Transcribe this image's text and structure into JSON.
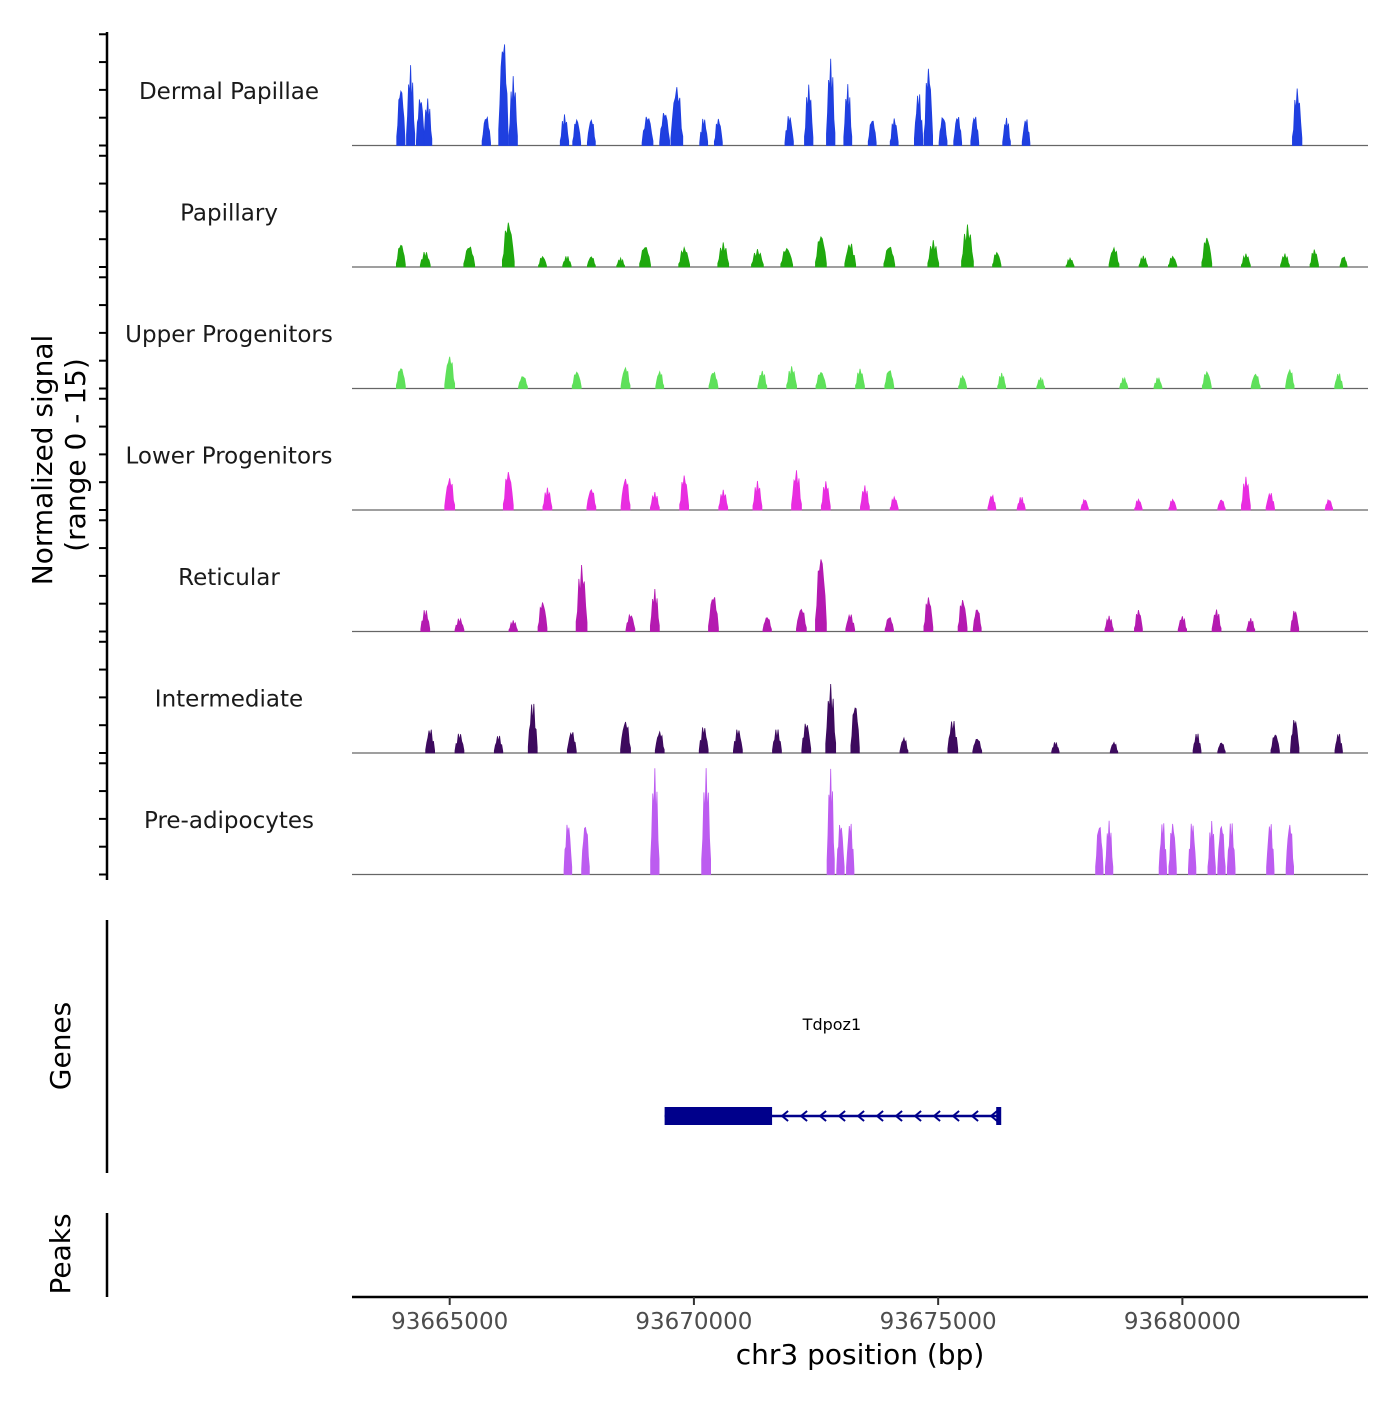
{
  "chart_data": {
    "type": "area",
    "title": "",
    "region": {
      "chrom": "chr3",
      "start": 93663000,
      "end": 93683800
    },
    "xlabel": "chr3 position (bp)",
    "ylabel": "Normalized signal",
    "ylabel_sub": "(range 0 - 15)",
    "ylim": [
      0,
      15
    ],
    "x_ticks": [
      93665000,
      93670000,
      93675000,
      93680000
    ],
    "x_tick_labels": [
      "93665000",
      "93670000",
      "93675000",
      "93680000"
    ],
    "tracks": [
      {
        "name": "Dermal Papillae",
        "color": "#1f3fe0",
        "peaks": [
          [
            93664000,
            0.045,
            0.55
          ],
          [
            93664200,
            0.045,
            0.72
          ],
          [
            93664400,
            0.04,
            0.45
          ],
          [
            93664550,
            0.045,
            0.42
          ],
          [
            93665750,
            0.05,
            0.28
          ],
          [
            93666100,
            0.07,
            1.0
          ],
          [
            93666300,
            0.05,
            0.62
          ],
          [
            93667350,
            0.05,
            0.28
          ],
          [
            93667600,
            0.04,
            0.25
          ],
          [
            93667900,
            0.04,
            0.25
          ],
          [
            93669050,
            0.1,
            0.28
          ],
          [
            93669650,
            0.12,
            0.55
          ],
          [
            93669400,
            0.08,
            0.32
          ],
          [
            93670200,
            0.04,
            0.25
          ],
          [
            93670500,
            0.04,
            0.25
          ],
          [
            93671950,
            0.05,
            0.28
          ],
          [
            93672350,
            0.05,
            0.55
          ],
          [
            93672800,
            0.05,
            0.78
          ],
          [
            93673150,
            0.04,
            0.55
          ],
          [
            93673650,
            0.04,
            0.25
          ],
          [
            93674100,
            0.04,
            0.25
          ],
          [
            93674600,
            0.05,
            0.48
          ],
          [
            93674800,
            0.05,
            0.72
          ],
          [
            93675100,
            0.04,
            0.28
          ],
          [
            93675400,
            0.04,
            0.28
          ],
          [
            93675750,
            0.04,
            0.28
          ],
          [
            93676400,
            0.035,
            0.25
          ],
          [
            93676800,
            0.035,
            0.25
          ],
          [
            93682350,
            0.07,
            0.52
          ]
        ]
      },
      {
        "name": "Papillary",
        "color": "#1fa80e",
        "peaks": [
          [
            93664000,
            0.06,
            0.22
          ],
          [
            93664500,
            0.08,
            0.14
          ],
          [
            93665400,
            0.1,
            0.2
          ],
          [
            93666200,
            0.12,
            0.42
          ],
          [
            93666900,
            0.04,
            0.1
          ],
          [
            93667400,
            0.05,
            0.1
          ],
          [
            93667900,
            0.04,
            0.1
          ],
          [
            93668500,
            0.04,
            0.08
          ],
          [
            93669000,
            0.1,
            0.2
          ],
          [
            93669800,
            0.1,
            0.18
          ],
          [
            93670600,
            0.1,
            0.22
          ],
          [
            93671300,
            0.12,
            0.16
          ],
          [
            93671900,
            0.12,
            0.18
          ],
          [
            93672600,
            0.1,
            0.3
          ],
          [
            93673200,
            0.1,
            0.22
          ],
          [
            93674000,
            0.1,
            0.2
          ],
          [
            93674900,
            0.1,
            0.24
          ],
          [
            93675600,
            0.12,
            0.38
          ],
          [
            93676200,
            0.05,
            0.14
          ],
          [
            93677700,
            0.04,
            0.08
          ],
          [
            93678600,
            0.08,
            0.18
          ],
          [
            93679200,
            0.05,
            0.1
          ],
          [
            93679800,
            0.05,
            0.1
          ],
          [
            93680500,
            0.08,
            0.28
          ],
          [
            93681300,
            0.06,
            0.12
          ],
          [
            93682100,
            0.06,
            0.12
          ],
          [
            93682700,
            0.05,
            0.16
          ],
          [
            93683300,
            0.02,
            0.1
          ]
        ]
      },
      {
        "name": "Upper Progenitors",
        "color": "#5ee05a",
        "peaks": [
          [
            93664000,
            0.06,
            0.2
          ],
          [
            93665000,
            0.08,
            0.3
          ],
          [
            93666500,
            0.06,
            0.12
          ],
          [
            93667600,
            0.06,
            0.16
          ],
          [
            93668600,
            0.06,
            0.2
          ],
          [
            93669300,
            0.04,
            0.16
          ],
          [
            93670400,
            0.06,
            0.16
          ],
          [
            93671400,
            0.06,
            0.16
          ],
          [
            93672000,
            0.08,
            0.2
          ],
          [
            93672600,
            0.08,
            0.16
          ],
          [
            93673400,
            0.06,
            0.18
          ],
          [
            93674000,
            0.06,
            0.18
          ],
          [
            93675500,
            0.04,
            0.12
          ],
          [
            93676300,
            0.04,
            0.14
          ],
          [
            93677100,
            0.04,
            0.1
          ],
          [
            93678800,
            0.04,
            0.1
          ],
          [
            93679500,
            0.04,
            0.1
          ],
          [
            93680500,
            0.06,
            0.16
          ],
          [
            93681500,
            0.06,
            0.14
          ],
          [
            93682200,
            0.05,
            0.18
          ],
          [
            93683200,
            0.04,
            0.14
          ]
        ]
      },
      {
        "name": "Lower Progenitors",
        "color": "#e82de0",
        "peaks": [
          [
            93665000,
            0.08,
            0.3
          ],
          [
            93666200,
            0.08,
            0.36
          ],
          [
            93667000,
            0.06,
            0.2
          ],
          [
            93667900,
            0.06,
            0.2
          ],
          [
            93668600,
            0.06,
            0.3
          ],
          [
            93669200,
            0.06,
            0.16
          ],
          [
            93669800,
            0.06,
            0.32
          ],
          [
            93670600,
            0.06,
            0.18
          ],
          [
            93671300,
            0.06,
            0.26
          ],
          [
            93672100,
            0.08,
            0.36
          ],
          [
            93672700,
            0.06,
            0.26
          ],
          [
            93673500,
            0.06,
            0.22
          ],
          [
            93674100,
            0.04,
            0.12
          ],
          [
            93676100,
            0.04,
            0.14
          ],
          [
            93676700,
            0.04,
            0.12
          ],
          [
            93678000,
            0.03,
            0.1
          ],
          [
            93679100,
            0.03,
            0.1
          ],
          [
            93679800,
            0.03,
            0.1
          ],
          [
            93680800,
            0.03,
            0.1
          ],
          [
            93681300,
            0.06,
            0.3
          ],
          [
            93681800,
            0.05,
            0.16
          ],
          [
            93683000,
            0.03,
            0.1
          ]
        ]
      },
      {
        "name": "Reticular",
        "color": "#b41ab0",
        "peaks": [
          [
            93664500,
            0.06,
            0.2
          ],
          [
            93665200,
            0.06,
            0.12
          ],
          [
            93666300,
            0.05,
            0.1
          ],
          [
            93666900,
            0.06,
            0.28
          ],
          [
            93667700,
            0.1,
            0.6
          ],
          [
            93668700,
            0.06,
            0.16
          ],
          [
            93669200,
            0.06,
            0.38
          ],
          [
            93670400,
            0.08,
            0.34
          ],
          [
            93671500,
            0.05,
            0.14
          ],
          [
            93672200,
            0.08,
            0.22
          ],
          [
            93672600,
            0.1,
            0.72
          ],
          [
            93673200,
            0.06,
            0.16
          ],
          [
            93674000,
            0.05,
            0.14
          ],
          [
            93674800,
            0.06,
            0.32
          ],
          [
            93675500,
            0.06,
            0.3
          ],
          [
            93675800,
            0.04,
            0.22
          ],
          [
            93678500,
            0.05,
            0.14
          ],
          [
            93679100,
            0.04,
            0.2
          ],
          [
            93680000,
            0.05,
            0.14
          ],
          [
            93680700,
            0.06,
            0.2
          ],
          [
            93681400,
            0.04,
            0.12
          ],
          [
            93682300,
            0.04,
            0.2
          ]
        ]
      },
      {
        "name": "Intermediate",
        "color": "#3d0a5e",
        "peaks": [
          [
            93664600,
            0.06,
            0.22
          ],
          [
            93665200,
            0.06,
            0.18
          ],
          [
            93666000,
            0.05,
            0.16
          ],
          [
            93666700,
            0.06,
            0.46
          ],
          [
            93667500,
            0.06,
            0.2
          ],
          [
            93668600,
            0.08,
            0.3
          ],
          [
            93669300,
            0.06,
            0.2
          ],
          [
            93670200,
            0.06,
            0.24
          ],
          [
            93670900,
            0.06,
            0.22
          ],
          [
            93671700,
            0.06,
            0.22
          ],
          [
            93672300,
            0.06,
            0.28
          ],
          [
            93672800,
            0.08,
            0.62
          ],
          [
            93673300,
            0.05,
            0.46
          ],
          [
            93674300,
            0.04,
            0.14
          ],
          [
            93675300,
            0.08,
            0.3
          ],
          [
            93675800,
            0.06,
            0.14
          ],
          [
            93677400,
            0.03,
            0.1
          ],
          [
            93678600,
            0.03,
            0.1
          ],
          [
            93680300,
            0.04,
            0.18
          ],
          [
            93680800,
            0.03,
            0.1
          ],
          [
            93681900,
            0.05,
            0.18
          ],
          [
            93682300,
            0.05,
            0.32
          ],
          [
            93683200,
            0.03,
            0.18
          ]
        ]
      },
      {
        "name": "Pre-adipocytes",
        "color": "#bc5cf0",
        "peaks": [
          [
            93667420,
            0.035,
            0.48
          ],
          [
            93667780,
            0.035,
            0.48
          ],
          [
            93669200,
            0.05,
            0.95
          ],
          [
            93670250,
            0.06,
            0.95
          ],
          [
            93672800,
            0.025,
            0.95
          ],
          [
            93673000,
            0.03,
            0.48
          ],
          [
            93673200,
            0.03,
            0.48
          ],
          [
            93678300,
            0.03,
            0.48
          ],
          [
            93678500,
            0.03,
            0.48
          ],
          [
            93679600,
            0.03,
            0.48
          ],
          [
            93679800,
            0.03,
            0.48
          ],
          [
            93680200,
            0.03,
            0.48
          ],
          [
            93680600,
            0.03,
            0.48
          ],
          [
            93680800,
            0.03,
            0.48
          ],
          [
            93681000,
            0.035,
            0.48
          ],
          [
            93681800,
            0.03,
            0.48
          ],
          [
            93682200,
            0.03,
            0.48
          ]
        ]
      }
    ],
    "genes": [
      {
        "name": "Tdpoz1",
        "strand": "-",
        "start": 93669400,
        "end": 93676250,
        "cds": [
          93669400,
          93671600
        ],
        "color": "#00008b"
      }
    ],
    "gene_track_label": "Genes",
    "peaks_track_label": "Peaks"
  }
}
